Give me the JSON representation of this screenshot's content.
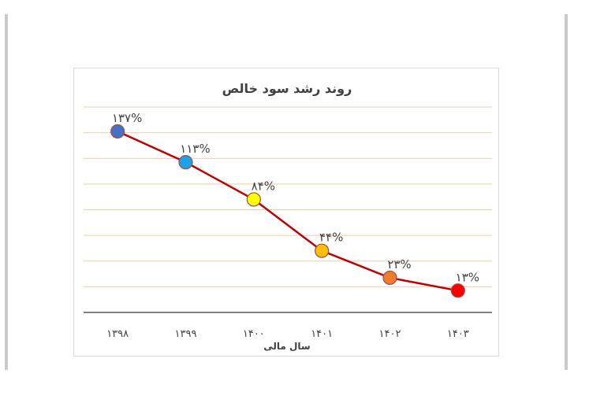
{
  "chart_data": {
    "type": "line",
    "title": "روند رشد سود خالص",
    "xlabel": "سال مالی",
    "ylabel": "",
    "categories": [
      "۱۳۹۸",
      "۱۳۹۹",
      "۱۴۰۰",
      "۱۴۰۱",
      "۱۴۰۲",
      "۱۴۰۳"
    ],
    "series": [
      {
        "values": [
          137,
          113,
          84,
          44,
          23,
          13
        ],
        "data_labels": [
          "۱۳۷%",
          "۱۱۳%",
          "۸۴%",
          "۴۴%",
          "۲۳%",
          "۱۳%"
        ],
        "line_color": "#c00000",
        "marker_colors": [
          "#4472c4",
          "#1aa3e8",
          "#ffff00",
          "#ffc000",
          "#ed7d31",
          "#ff0000"
        ]
      }
    ],
    "ylim": [
      -4,
      156
    ],
    "grid": true,
    "gridline_color": "#f6c9a8",
    "legend": "none"
  }
}
